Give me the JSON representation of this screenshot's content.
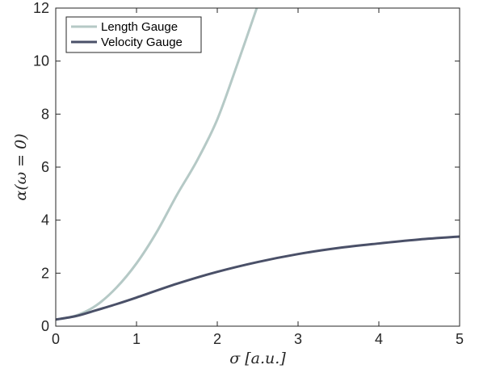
{
  "chart_data": {
    "type": "line",
    "title": "",
    "xlabel": "σ [a.u.]",
    "ylabel": "α(ω = 0)",
    "xlim": [
      0,
      5
    ],
    "ylim": [
      0,
      12
    ],
    "xticks": [
      "0",
      "1",
      "2",
      "3",
      "4",
      "5"
    ],
    "yticks": [
      "0",
      "2",
      "4",
      "6",
      "8",
      "10",
      "12"
    ],
    "grid": false,
    "legend_position": "top-left",
    "series": [
      {
        "name": "Length Gauge",
        "color": "#b5c9c6",
        "x": [
          0,
          0.25,
          0.5,
          0.75,
          1.0,
          1.25,
          1.5,
          1.75,
          2.0,
          2.25,
          2.5
        ],
        "y": [
          0.25,
          0.4,
          0.78,
          1.45,
          2.37,
          3.55,
          4.95,
          6.25,
          7.8,
          9.9,
          12.1
        ]
      },
      {
        "name": "Velocity Gauge",
        "color": "#4a5068",
        "x": [
          0,
          0.25,
          0.5,
          0.75,
          1.0,
          1.5,
          2.0,
          2.5,
          3.0,
          3.5,
          4.0,
          4.5,
          5.0
        ],
        "y": [
          0.25,
          0.38,
          0.6,
          0.83,
          1.08,
          1.6,
          2.05,
          2.42,
          2.72,
          2.95,
          3.12,
          3.27,
          3.38
        ]
      }
    ]
  }
}
